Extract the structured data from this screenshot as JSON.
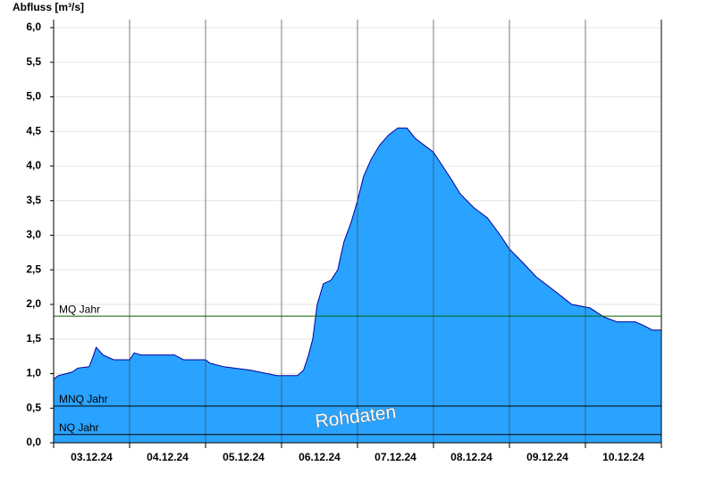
{
  "chart_data": {
    "type": "area",
    "y_label": "Abfluss [m³/s]",
    "annotation": "Rohdaten",
    "categories": [
      "03.12.24",
      "04.12.24",
      "05.12.24",
      "06.12.24",
      "07.12.24",
      "08.12.24",
      "09.12.24",
      "10.12.24"
    ],
    "xlim": [
      0,
      8
    ],
    "xticks": [
      0,
      1,
      2,
      3,
      4,
      5,
      6,
      7,
      8
    ],
    "ylim": [
      0,
      6
    ],
    "yticks": [
      {
        "value": 0,
        "label": "0,0"
      },
      {
        "value": 0.5,
        "label": "0,5"
      },
      {
        "value": 1,
        "label": "1,0"
      },
      {
        "value": 1.5,
        "label": "1,5"
      },
      {
        "value": 2,
        "label": "2,0"
      },
      {
        "value": 2.5,
        "label": "2,5"
      },
      {
        "value": 3,
        "label": "3,0"
      },
      {
        "value": 3.5,
        "label": "3,5"
      },
      {
        "value": 4,
        "label": "4,0"
      },
      {
        "value": 4.5,
        "label": "4,5"
      },
      {
        "value": 5,
        "label": "5,0"
      },
      {
        "value": 5.5,
        "label": "5,5"
      },
      {
        "value": 6,
        "label": "6,0"
      }
    ],
    "grid": true,
    "x": [
      0,
      0.06,
      0.24,
      0.32,
      0.47,
      0.52,
      0.56,
      0.65,
      0.79,
      1.0,
      1.06,
      1.15,
      1.29,
      1.59,
      1.71,
      2.0,
      2.06,
      2.24,
      2.59,
      2.94,
      3.21,
      3.29,
      3.35,
      3.41,
      3.47,
      3.55,
      3.65,
      3.74,
      3.82,
      3.92,
      4.0,
      4.08,
      4.18,
      4.29,
      4.41,
      4.53,
      4.65,
      4.76,
      4.88,
      5.0,
      5.12,
      5.24,
      5.35,
      5.53,
      5.71,
      5.88,
      6.0,
      6.18,
      6.35,
      6.59,
      6.82,
      7.06,
      7.24,
      7.41,
      7.65,
      7.76,
      7.88,
      8.0
    ],
    "series": [
      {
        "color": "#29a3ff",
        "line_color": "#0000a0",
        "values": [
          0.92,
          0.97,
          1.02,
          1.08,
          1.1,
          1.25,
          1.38,
          1.27,
          1.2,
          1.2,
          1.3,
          1.27,
          1.27,
          1.27,
          1.2,
          1.2,
          1.15,
          1.1,
          1.05,
          0.97,
          0.97,
          1.05,
          1.25,
          1.5,
          2.0,
          2.3,
          2.35,
          2.5,
          2.9,
          3.2,
          3.5,
          3.85,
          4.1,
          4.3,
          4.45,
          4.55,
          4.55,
          4.4,
          4.3,
          4.2,
          4.0,
          3.8,
          3.6,
          3.4,
          3.25,
          3.0,
          2.8,
          2.6,
          2.4,
          2.2,
          2.0,
          1.95,
          1.82,
          1.75,
          1.75,
          1.7,
          1.63,
          1.63
        ]
      }
    ],
    "reference_lines": [
      {
        "label": "MQ Jahr",
        "value": 1.83,
        "color": "#006400"
      },
      {
        "label": "MNQ Jahr",
        "value": 0.53,
        "color": "#000000"
      },
      {
        "label": "NQ Jahr",
        "value": 0.12,
        "color": "#000000"
      }
    ]
  }
}
